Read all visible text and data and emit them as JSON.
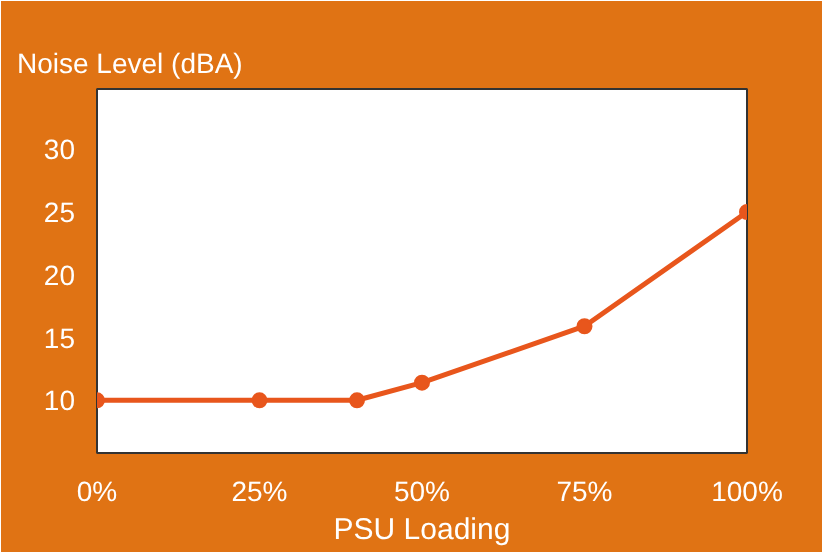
{
  "chart_data": {
    "type": "line",
    "title": "Noise Level (dBA)",
    "xlabel": "PSU Loading",
    "x": [
      0,
      25,
      40,
      50,
      75,
      100
    ],
    "series": [
      {
        "color": "#e8561c",
        "values": [
          10,
          10,
          10,
          11.4,
          15.9,
          25
        ]
      }
    ],
    "xlim": [
      0,
      100
    ],
    "xticks": [
      {
        "value": 0,
        "label": "0%"
      },
      {
        "value": 25,
        "label": "25%"
      },
      {
        "value": 50,
        "label": "50%"
      },
      {
        "value": 75,
        "label": "75%"
      },
      {
        "value": 100,
        "label": "100%"
      }
    ],
    "ylim": [
      5.8,
      34.8
    ],
    "yticks": [
      10,
      15,
      20,
      25,
      30
    ],
    "marker": "circle",
    "line_style": "solid",
    "grid": false
  }
}
